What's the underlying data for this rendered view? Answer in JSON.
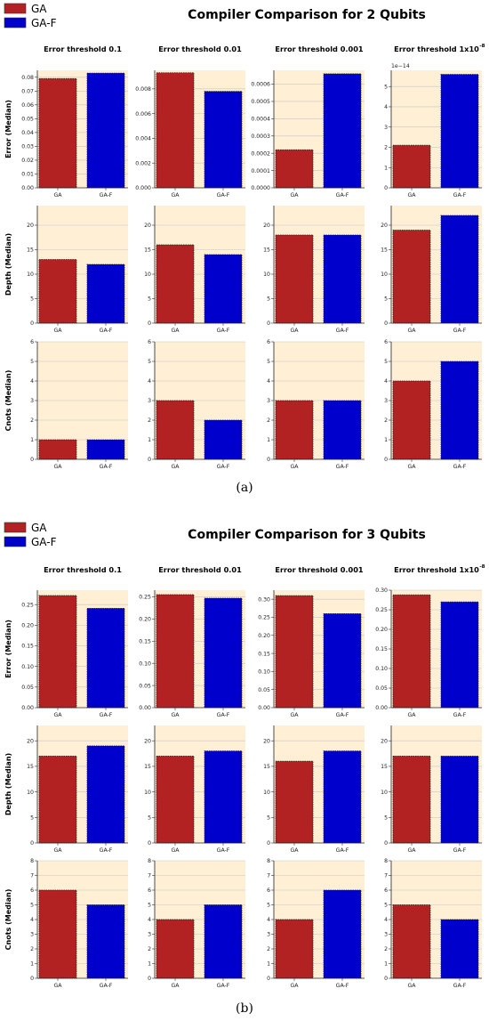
{
  "colors": {
    "ga": "#b22222",
    "gaf": "#0000cd",
    "panel_bg": "#feefd5",
    "grid": "#c8c8c8"
  },
  "figures": [
    {
      "title": "Compiler Comparison for 2 Qubits",
      "sublabel": "(a)",
      "legend": [
        "GA",
        "GA-F"
      ],
      "column_titles": [
        "Error threshold 0.1",
        "Error threshold 0.01",
        "Error threshold 0.001",
        "Error threshold 1x10"
      ],
      "column_title_superscripts": [
        "",
        "",
        "",
        "-8"
      ]
    },
    {
      "title": "Compiler Comparison for 3 Qubits",
      "sublabel": "(b)",
      "legend": [
        "GA",
        "GA-F"
      ],
      "column_titles": [
        "Error threshold 0.1",
        "Error threshold 0.01",
        "Error threshold 0.001",
        "Error threshold 1x10"
      ],
      "column_title_superscripts": [
        "",
        "",
        "",
        "-8"
      ]
    }
  ],
  "chart_data": [
    {
      "type": "bar",
      "figure": 0,
      "row": 0,
      "col": 0,
      "ylabel": "Error (Median)",
      "categories": [
        "GA",
        "GA-F"
      ],
      "values": [
        0.079,
        0.083
      ],
      "ylim": [
        0,
        0.085
      ],
      "yticks": [
        "0.00",
        "0.01",
        "0.02",
        "0.03",
        "0.04",
        "0.05",
        "0.06",
        "0.07",
        "0.08"
      ],
      "ytick_values": [
        0,
        0.01,
        0.02,
        0.03,
        0.04,
        0.05,
        0.06,
        0.07,
        0.08
      ]
    },
    {
      "type": "bar",
      "figure": 0,
      "row": 0,
      "col": 1,
      "ylabel": "",
      "categories": [
        "GA",
        "GA-F"
      ],
      "values": [
        0.0093,
        0.0078
      ],
      "ylim": [
        0,
        0.0095
      ],
      "yticks": [
        "0.000",
        "0.002",
        "0.004",
        "0.006",
        "0.008"
      ],
      "ytick_values": [
        0,
        0.002,
        0.004,
        0.006,
        0.008
      ]
    },
    {
      "type": "bar",
      "figure": 0,
      "row": 0,
      "col": 2,
      "ylabel": "",
      "categories": [
        "GA",
        "GA-F"
      ],
      "values": [
        0.00022,
        0.00066
      ],
      "ylim": [
        0,
        0.00068
      ],
      "yticks": [
        "0.0000",
        "0.0001",
        "0.0002",
        "0.0003",
        "0.0004",
        "0.0005",
        "0.0006"
      ],
      "ytick_values": [
        0,
        0.0001,
        0.0002,
        0.0003,
        0.0004,
        0.0005,
        0.0006
      ]
    },
    {
      "type": "bar",
      "figure": 0,
      "row": 0,
      "col": 3,
      "ylabel": "",
      "offset_text": "1e−14",
      "categories": [
        "GA",
        "GA-F"
      ],
      "values": [
        2.1,
        5.6
      ],
      "ylim": [
        0,
        5.8
      ],
      "yticks": [
        "0",
        "1",
        "2",
        "3",
        "4",
        "5"
      ],
      "ytick_values": [
        0,
        1,
        2,
        3,
        4,
        5
      ]
    },
    {
      "type": "bar",
      "figure": 0,
      "row": 1,
      "col": 0,
      "ylabel": "Depth (Median)",
      "categories": [
        "GA",
        "GA-F"
      ],
      "values": [
        13,
        12
      ],
      "ylim": [
        0,
        24
      ],
      "yticks": [
        "0",
        "5",
        "10",
        "15",
        "20"
      ],
      "ytick_values": [
        0,
        5,
        10,
        15,
        20
      ]
    },
    {
      "type": "bar",
      "figure": 0,
      "row": 1,
      "col": 1,
      "ylabel": "",
      "categories": [
        "GA",
        "GA-F"
      ],
      "values": [
        16,
        14
      ],
      "ylim": [
        0,
        24
      ],
      "yticks": [
        "0",
        "5",
        "10",
        "15",
        "20"
      ],
      "ytick_values": [
        0,
        5,
        10,
        15,
        20
      ]
    },
    {
      "type": "bar",
      "figure": 0,
      "row": 1,
      "col": 2,
      "ylabel": "",
      "categories": [
        "GA",
        "GA-F"
      ],
      "values": [
        18,
        18
      ],
      "ylim": [
        0,
        24
      ],
      "yticks": [
        "0",
        "5",
        "10",
        "15",
        "20"
      ],
      "ytick_values": [
        0,
        5,
        10,
        15,
        20
      ]
    },
    {
      "type": "bar",
      "figure": 0,
      "row": 1,
      "col": 3,
      "ylabel": "",
      "categories": [
        "GA",
        "GA-F"
      ],
      "values": [
        19,
        22
      ],
      "ylim": [
        0,
        24
      ],
      "yticks": [
        "0",
        "5",
        "10",
        "15",
        "20"
      ],
      "ytick_values": [
        0,
        5,
        10,
        15,
        20
      ]
    },
    {
      "type": "bar",
      "figure": 0,
      "row": 2,
      "col": 0,
      "ylabel": "Cnots (Median)",
      "categories": [
        "GA",
        "GA-F"
      ],
      "values": [
        1,
        1
      ],
      "ylim": [
        0,
        6
      ],
      "yticks": [
        "0",
        "1",
        "2",
        "3",
        "4",
        "5",
        "6"
      ],
      "ytick_values": [
        0,
        1,
        2,
        3,
        4,
        5,
        6
      ]
    },
    {
      "type": "bar",
      "figure": 0,
      "row": 2,
      "col": 1,
      "ylabel": "",
      "categories": [
        "GA",
        "GA-F"
      ],
      "values": [
        3,
        2
      ],
      "ylim": [
        0,
        6
      ],
      "yticks": [
        "0",
        "1",
        "2",
        "3",
        "4",
        "5",
        "6"
      ],
      "ytick_values": [
        0,
        1,
        2,
        3,
        4,
        5,
        6
      ]
    },
    {
      "type": "bar",
      "figure": 0,
      "row": 2,
      "col": 2,
      "ylabel": "",
      "categories": [
        "GA",
        "GA-F"
      ],
      "values": [
        3,
        3
      ],
      "ylim": [
        0,
        6
      ],
      "yticks": [
        "0",
        "1",
        "2",
        "3",
        "4",
        "5",
        "6"
      ],
      "ytick_values": [
        0,
        1,
        2,
        3,
        4,
        5,
        6
      ]
    },
    {
      "type": "bar",
      "figure": 0,
      "row": 2,
      "col": 3,
      "ylabel": "",
      "categories": [
        "GA",
        "GA-F"
      ],
      "values": [
        4,
        5
      ],
      "ylim": [
        0,
        6
      ],
      "yticks": [
        "0",
        "1",
        "2",
        "3",
        "4",
        "5",
        "6"
      ],
      "ytick_values": [
        0,
        1,
        2,
        3,
        4,
        5,
        6
      ]
    },
    {
      "type": "bar",
      "figure": 1,
      "row": 0,
      "col": 0,
      "ylabel": "Error (Median)",
      "categories": [
        "GA",
        "GA-F"
      ],
      "values": [
        0.272,
        0.241
      ],
      "ylim": [
        0,
        0.285
      ],
      "yticks": [
        "0.00",
        "0.05",
        "0.10",
        "0.15",
        "0.20",
        "0.25"
      ],
      "ytick_values": [
        0,
        0.05,
        0.1,
        0.15,
        0.2,
        0.25
      ]
    },
    {
      "type": "bar",
      "figure": 1,
      "row": 0,
      "col": 1,
      "ylabel": "",
      "categories": [
        "GA",
        "GA-F"
      ],
      "values": [
        0.255,
        0.247
      ],
      "ylim": [
        0,
        0.265
      ],
      "yticks": [
        "0.00",
        "0.05",
        "0.10",
        "0.15",
        "0.20",
        "0.25"
      ],
      "ytick_values": [
        0,
        0.05,
        0.1,
        0.15,
        0.2,
        0.25
      ]
    },
    {
      "type": "bar",
      "figure": 1,
      "row": 0,
      "col": 2,
      "ylabel": "",
      "categories": [
        "GA",
        "GA-F"
      ],
      "values": [
        0.31,
        0.26
      ],
      "ylim": [
        0,
        0.325
      ],
      "yticks": [
        "0.00",
        "0.05",
        "0.10",
        "0.15",
        "0.20",
        "0.25",
        "0.30"
      ],
      "ytick_values": [
        0,
        0.05,
        0.1,
        0.15,
        0.2,
        0.25,
        0.3
      ]
    },
    {
      "type": "bar",
      "figure": 1,
      "row": 0,
      "col": 3,
      "ylabel": "",
      "categories": [
        "GA",
        "GA-F"
      ],
      "values": [
        0.288,
        0.27
      ],
      "ylim": [
        0,
        0.3
      ],
      "yticks": [
        "0.00",
        "0.05",
        "0.10",
        "0.15",
        "0.20",
        "0.25",
        "0.30"
      ],
      "ytick_values": [
        0,
        0.05,
        0.1,
        0.15,
        0.2,
        0.25,
        0.3
      ]
    },
    {
      "type": "bar",
      "figure": 1,
      "row": 1,
      "col": 0,
      "ylabel": "Depth (Median)",
      "categories": [
        "GA",
        "GA-F"
      ],
      "values": [
        17,
        19
      ],
      "ylim": [
        0,
        23
      ],
      "yticks": [
        "0",
        "5",
        "10",
        "15",
        "20"
      ],
      "ytick_values": [
        0,
        5,
        10,
        15,
        20
      ]
    },
    {
      "type": "bar",
      "figure": 1,
      "row": 1,
      "col": 1,
      "ylabel": "",
      "categories": [
        "GA",
        "GA-F"
      ],
      "values": [
        17,
        18
      ],
      "ylim": [
        0,
        23
      ],
      "yticks": [
        "0",
        "5",
        "10",
        "15",
        "20"
      ],
      "ytick_values": [
        0,
        5,
        10,
        15,
        20
      ]
    },
    {
      "type": "bar",
      "figure": 1,
      "row": 1,
      "col": 2,
      "ylabel": "",
      "categories": [
        "GA",
        "GA-F"
      ],
      "values": [
        16,
        18
      ],
      "ylim": [
        0,
        23
      ],
      "yticks": [
        "0",
        "5",
        "10",
        "15",
        "20"
      ],
      "ytick_values": [
        0,
        5,
        10,
        15,
        20
      ]
    },
    {
      "type": "bar",
      "figure": 1,
      "row": 1,
      "col": 3,
      "ylabel": "",
      "categories": [
        "GA",
        "GA-F"
      ],
      "values": [
        17,
        17
      ],
      "ylim": [
        0,
        23
      ],
      "yticks": [
        "0",
        "5",
        "10",
        "15",
        "20"
      ],
      "ytick_values": [
        0,
        5,
        10,
        15,
        20
      ]
    },
    {
      "type": "bar",
      "figure": 1,
      "row": 2,
      "col": 0,
      "ylabel": "Cnots (Median)",
      "categories": [
        "GA",
        "GA-F"
      ],
      "values": [
        6,
        5
      ],
      "ylim": [
        0,
        8
      ],
      "yticks": [
        "0",
        "1",
        "2",
        "3",
        "4",
        "5",
        "6",
        "7",
        "8"
      ],
      "ytick_values": [
        0,
        1,
        2,
        3,
        4,
        5,
        6,
        7,
        8
      ]
    },
    {
      "type": "bar",
      "figure": 1,
      "row": 2,
      "col": 1,
      "ylabel": "",
      "categories": [
        "GA",
        "GA-F"
      ],
      "values": [
        4,
        5
      ],
      "ylim": [
        0,
        8
      ],
      "yticks": [
        "0",
        "1",
        "2",
        "3",
        "4",
        "5",
        "6",
        "7",
        "8"
      ],
      "ytick_values": [
        0,
        1,
        2,
        3,
        4,
        5,
        6,
        7,
        8
      ]
    },
    {
      "type": "bar",
      "figure": 1,
      "row": 2,
      "col": 2,
      "ylabel": "",
      "categories": [
        "GA",
        "GA-F"
      ],
      "values": [
        4,
        6
      ],
      "ylim": [
        0,
        8
      ],
      "yticks": [
        "0",
        "1",
        "2",
        "3",
        "4",
        "5",
        "6",
        "7",
        "8"
      ],
      "ytick_values": [
        0,
        1,
        2,
        3,
        4,
        5,
        6,
        7,
        8
      ]
    },
    {
      "type": "bar",
      "figure": 1,
      "row": 2,
      "col": 3,
      "ylabel": "",
      "categories": [
        "GA",
        "GA-F"
      ],
      "values": [
        5,
        4
      ],
      "ylim": [
        0,
        8
      ],
      "yticks": [
        "0",
        "1",
        "2",
        "3",
        "4",
        "5",
        "6",
        "7",
        "8"
      ],
      "ytick_values": [
        0,
        1,
        2,
        3,
        4,
        5,
        6,
        7,
        8
      ]
    }
  ]
}
